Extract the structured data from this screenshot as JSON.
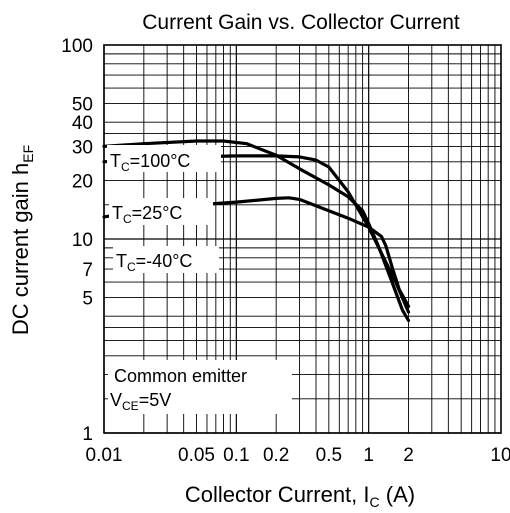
{
  "chart_data": {
    "type": "line",
    "title": "Current Gain vs. Collector Current",
    "xlabel": {
      "main": "Collector Current, ",
      "var": "I",
      "sub": "C",
      "unit": " (A)"
    },
    "ylabel": {
      "main": "DC current gain  ",
      "var": "h",
      "sub": "EF"
    },
    "xscale": "log",
    "yscale": "log",
    "xlim": [
      0.01,
      10
    ],
    "ylim": [
      1,
      100
    ],
    "grid": true,
    "x_ticks": [
      {
        "value": 0.01,
        "label": "0.01"
      },
      {
        "value": 0.05,
        "label": "0.05"
      },
      {
        "value": 0.1,
        "label": "0.1"
      },
      {
        "value": 0.2,
        "label": "0.2"
      },
      {
        "value": 0.5,
        "label": "0.5"
      },
      {
        "value": 1,
        "label": "1"
      },
      {
        "value": 2,
        "label": "2"
      },
      {
        "value": 10,
        "label": "10"
      }
    ],
    "y_ticks": [
      {
        "value": 1,
        "label": "1"
      },
      {
        "value": 5,
        "label": "5"
      },
      {
        "value": 7,
        "label": "7"
      },
      {
        "value": 10,
        "label": "10"
      },
      {
        "value": 20,
        "label": "20"
      },
      {
        "value": 30,
        "label": "30"
      },
      {
        "value": 40,
        "label": "40"
      },
      {
        "value": 50,
        "label": "50"
      },
      {
        "value": 100,
        "label": "100"
      }
    ],
    "series": [
      {
        "name": "TC=100°C",
        "label_parts": {
          "var": "T",
          "sub": "C",
          "rest": "=100°C"
        },
        "x": [
          0.01,
          0.02,
          0.05,
          0.08,
          0.12,
          0.2,
          0.3,
          0.5,
          0.7,
          0.9,
          1.0,
          1.2,
          1.5,
          1.8,
          2.0
        ],
        "y": [
          30,
          31,
          32,
          32,
          31,
          27,
          23,
          19,
          16.5,
          14,
          12,
          9,
          6,
          4.3,
          3.8
        ]
      },
      {
        "name": "TC=25°C",
        "label_parts": {
          "var": "T",
          "sub": "C",
          "rest": "=25°C"
        },
        "x": [
          0.01,
          0.02,
          0.05,
          0.1,
          0.2,
          0.3,
          0.4,
          0.5,
          0.7,
          1.0,
          1.3,
          1.6,
          2.0
        ],
        "y": [
          25,
          26,
          26.5,
          26.8,
          26.8,
          26.5,
          25.5,
          23.5,
          17.5,
          11.5,
          8,
          6,
          4.2
        ]
      },
      {
        "name": "TC=-40°C",
        "label_parts": {
          "var": "T",
          "sub": "C",
          "rest": "=-40°C"
        },
        "x": [
          0.01,
          0.02,
          0.05,
          0.1,
          0.2,
          0.25,
          0.3,
          0.5,
          0.7,
          1.0,
          1.25,
          1.35,
          1.5,
          1.7,
          2.0
        ],
        "y": [
          13,
          14,
          15,
          15.5,
          16.2,
          16.3,
          16,
          14,
          12.8,
          11.5,
          10.3,
          9.2,
          7.2,
          5.5,
          4.5
        ]
      }
    ],
    "annotations": {
      "line1": "Common emitter",
      "line2": {
        "var": "V",
        "sub": "CE",
        "rest": "=5V"
      }
    }
  }
}
